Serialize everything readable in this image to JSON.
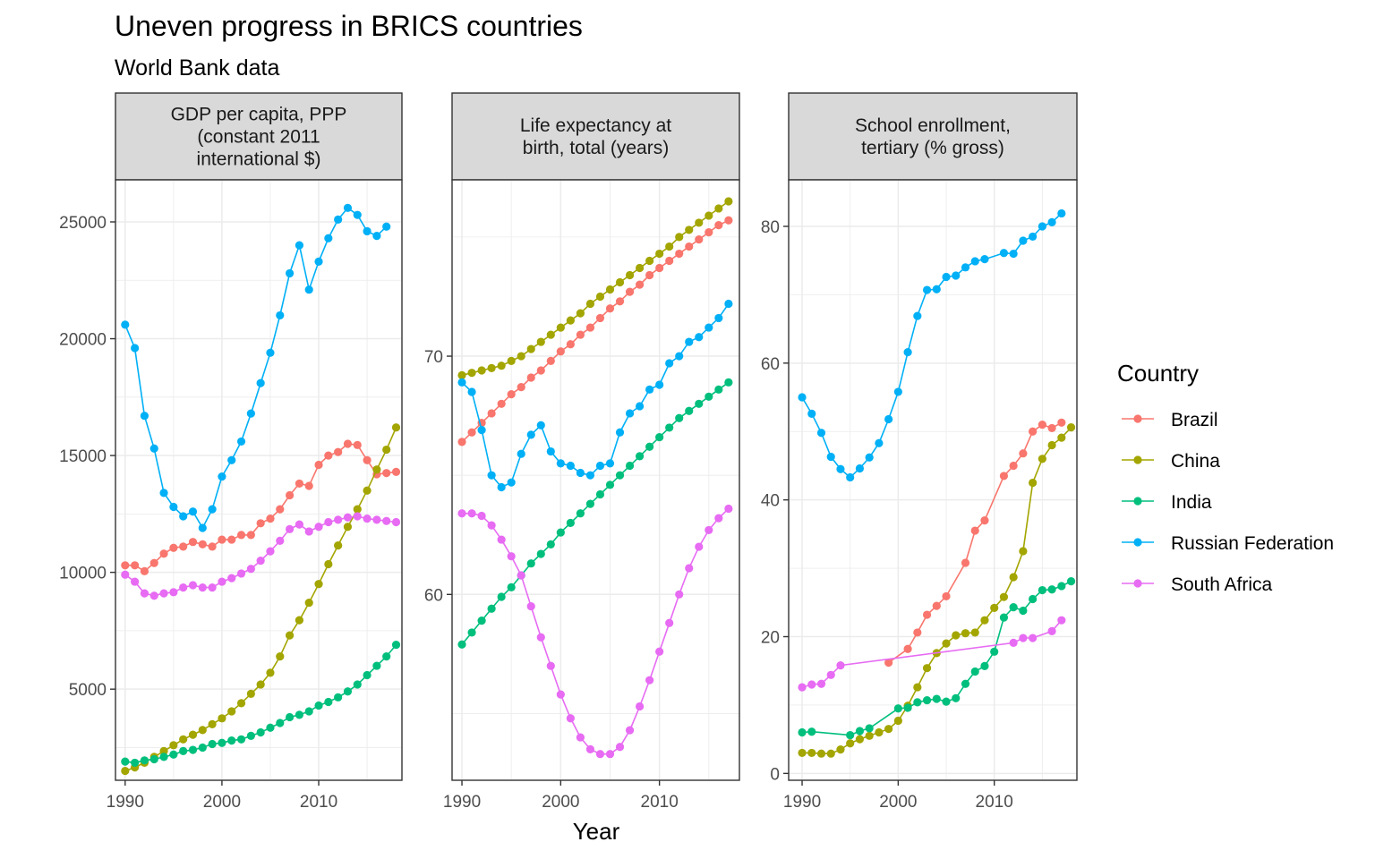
{
  "title": "Uneven progress in BRICS countries",
  "subtitle": "World Bank data",
  "xlabel": "Year",
  "legend": {
    "title": "Country",
    "entries": [
      "Brazil",
      "China",
      "India",
      "Russian Federation",
      "South Africa"
    ]
  },
  "colors": {
    "Brazil": "#F8766D",
    "China": "#A3A500",
    "India": "#00BF7D",
    "Russian Federation": "#00B0F6",
    "South Africa": "#E76BF3"
  },
  "chart_data": [
    {
      "type": "line",
      "strip_lines": [
        "GDP per capita, PPP",
        "(constant 2011",
        "international $)"
      ],
      "xlim": [
        1989,
        2018.6
      ],
      "ylim": [
        1100,
        26800
      ],
      "xticks": [
        1990,
        2000,
        2010
      ],
      "yticks": [
        5000,
        10000,
        15000,
        20000,
        25000
      ],
      "grid": true,
      "series": [
        {
          "name": "Brazil",
          "x": [
            1990,
            1991,
            1992,
            1993,
            1994,
            1995,
            1996,
            1997,
            1998,
            1999,
            2000,
            2001,
            2002,
            2003,
            2004,
            2005,
            2006,
            2007,
            2008,
            2009,
            2010,
            2011,
            2012,
            2013,
            2014,
            2015,
            2016,
            2017,
            2018
          ],
          "y": [
            10300,
            10300,
            10050,
            10400,
            10800,
            11050,
            11100,
            11300,
            11200,
            11100,
            11400,
            11400,
            11600,
            11600,
            12100,
            12300,
            12700,
            13300,
            13800,
            13700,
            14600,
            15000,
            15150,
            15500,
            15450,
            14800,
            14200,
            14250,
            14300
          ]
        },
        {
          "name": "China",
          "x": [
            1990,
            1991,
            1992,
            1993,
            1994,
            1995,
            1996,
            1997,
            1998,
            1999,
            2000,
            2001,
            2002,
            2003,
            2004,
            2005,
            2006,
            2007,
            2008,
            2009,
            2010,
            2011,
            2012,
            2013,
            2014,
            2015,
            2016,
            2017,
            2018
          ],
          "y": [
            1500,
            1650,
            1850,
            2100,
            2350,
            2600,
            2850,
            3050,
            3250,
            3500,
            3750,
            4050,
            4400,
            4800,
            5200,
            5700,
            6400,
            7300,
            7950,
            8700,
            9500,
            10350,
            11150,
            11950,
            12700,
            13500,
            14400,
            15250,
            16200
          ]
        },
        {
          "name": "India",
          "x": [
            1990,
            1991,
            1992,
            1993,
            1994,
            1995,
            1996,
            1997,
            1998,
            1999,
            2000,
            2001,
            2002,
            2003,
            2004,
            2005,
            2006,
            2007,
            2008,
            2009,
            2010,
            2011,
            2012,
            2013,
            2014,
            2015,
            2016,
            2017,
            2018
          ],
          "y": [
            1900,
            1850,
            1950,
            2000,
            2100,
            2200,
            2350,
            2400,
            2500,
            2650,
            2700,
            2800,
            2850,
            3000,
            3150,
            3350,
            3550,
            3800,
            3900,
            4050,
            4300,
            4450,
            4650,
            4900,
            5200,
            5600,
            6000,
            6400,
            6900
          ]
        },
        {
          "name": "Russian Federation",
          "x": [
            1990,
            1991,
            1992,
            1993,
            1994,
            1995,
            1996,
            1997,
            1998,
            1999,
            2000,
            2001,
            2002,
            2003,
            2004,
            2005,
            2006,
            2007,
            2008,
            2009,
            2010,
            2011,
            2012,
            2013,
            2014,
            2015,
            2016,
            2017
          ],
          "y": [
            20600,
            19600,
            16700,
            15300,
            13400,
            12800,
            12400,
            12600,
            11900,
            12700,
            14100,
            14800,
            15600,
            16800,
            18100,
            19400,
            21000,
            22800,
            24000,
            22100,
            23300,
            24300,
            25100,
            25600,
            25300,
            24600,
            24400,
            24800
          ]
        },
        {
          "name": "South Africa",
          "x": [
            1990,
            1991,
            1992,
            1993,
            1994,
            1995,
            1996,
            1997,
            1998,
            1999,
            2000,
            2001,
            2002,
            2003,
            2004,
            2005,
            2006,
            2007,
            2008,
            2009,
            2010,
            2011,
            2012,
            2013,
            2014,
            2015,
            2016,
            2017,
            2018
          ],
          "y": [
            9900,
            9600,
            9100,
            9000,
            9100,
            9150,
            9350,
            9450,
            9350,
            9350,
            9600,
            9750,
            9950,
            10150,
            10500,
            10900,
            11350,
            11850,
            12050,
            11750,
            11950,
            12150,
            12250,
            12350,
            12400,
            12300,
            12250,
            12200,
            12150
          ]
        }
      ]
    },
    {
      "type": "line",
      "strip_lines": [
        "Life expectancy at",
        "birth, total (years)"
      ],
      "xlim": [
        1989,
        2018.1
      ],
      "ylim": [
        52.2,
        77.4
      ],
      "xticks": [
        1990,
        2000,
        2010
      ],
      "yticks": [
        60,
        70
      ],
      "grid": true,
      "series": [
        {
          "name": "Brazil",
          "x": [
            1990,
            1991,
            1992,
            1993,
            1994,
            1995,
            1996,
            1997,
            1998,
            1999,
            2000,
            2001,
            2002,
            2003,
            2004,
            2005,
            2006,
            2007,
            2008,
            2009,
            2010,
            2011,
            2012,
            2013,
            2014,
            2015,
            2016,
            2017
          ],
          "y": [
            66.4,
            66.8,
            67.2,
            67.6,
            68.0,
            68.4,
            68.7,
            69.1,
            69.4,
            69.8,
            70.2,
            70.5,
            70.9,
            71.2,
            71.6,
            72.0,
            72.3,
            72.7,
            73.0,
            73.4,
            73.7,
            74.0,
            74.3,
            74.6,
            74.9,
            75.2,
            75.5,
            75.7
          ]
        },
        {
          "name": "China",
          "x": [
            1990,
            1991,
            1992,
            1993,
            1994,
            1995,
            1996,
            1997,
            1998,
            1999,
            2000,
            2001,
            2002,
            2003,
            2004,
            2005,
            2006,
            2007,
            2008,
            2009,
            2010,
            2011,
            2012,
            2013,
            2014,
            2015,
            2016,
            2017
          ],
          "y": [
            69.2,
            69.3,
            69.4,
            69.5,
            69.6,
            69.8,
            70.0,
            70.3,
            70.6,
            70.9,
            71.2,
            71.5,
            71.8,
            72.2,
            72.5,
            72.8,
            73.1,
            73.4,
            73.7,
            74.0,
            74.3,
            74.6,
            75.0,
            75.3,
            75.6,
            75.9,
            76.2,
            76.5
          ]
        },
        {
          "name": "India",
          "x": [
            1990,
            1991,
            1992,
            1993,
            1994,
            1995,
            1996,
            1997,
            1998,
            1999,
            2000,
            2001,
            2002,
            2003,
            2004,
            2005,
            2006,
            2007,
            2008,
            2009,
            2010,
            2011,
            2012,
            2013,
            2014,
            2015,
            2016,
            2017
          ],
          "y": [
            57.9,
            58.4,
            58.9,
            59.4,
            59.9,
            60.3,
            60.8,
            61.3,
            61.7,
            62.1,
            62.6,
            63.0,
            63.4,
            63.8,
            64.2,
            64.6,
            65.0,
            65.4,
            65.8,
            66.2,
            66.6,
            67.0,
            67.4,
            67.7,
            68.0,
            68.3,
            68.6,
            68.9
          ]
        },
        {
          "name": "Russian Federation",
          "x": [
            1990,
            1991,
            1992,
            1993,
            1994,
            1995,
            1996,
            1997,
            1998,
            1999,
            2000,
            2001,
            2002,
            2003,
            2004,
            2005,
            2006,
            2007,
            2008,
            2009,
            2010,
            2011,
            2012,
            2013,
            2014,
            2015,
            2016,
            2017
          ],
          "y": [
            68.9,
            68.5,
            66.9,
            65.0,
            64.5,
            64.7,
            65.9,
            66.7,
            67.1,
            66.0,
            65.5,
            65.4,
            65.1,
            65.0,
            65.4,
            65.5,
            66.8,
            67.6,
            67.9,
            68.6,
            68.8,
            69.7,
            70.0,
            70.6,
            70.8,
            71.2,
            71.6,
            72.2
          ]
        },
        {
          "name": "South Africa",
          "x": [
            1990,
            1991,
            1992,
            1993,
            1994,
            1995,
            1996,
            1997,
            1998,
            1999,
            2000,
            2001,
            2002,
            2003,
            2004,
            2005,
            2006,
            2007,
            2008,
            2009,
            2010,
            2011,
            2012,
            2013,
            2014,
            2015,
            2016,
            2017
          ],
          "y": [
            63.4,
            63.4,
            63.3,
            62.9,
            62.3,
            61.6,
            60.8,
            59.5,
            58.2,
            57.0,
            55.8,
            54.8,
            54.0,
            53.5,
            53.3,
            53.3,
            53.6,
            54.3,
            55.3,
            56.4,
            57.6,
            58.8,
            60.0,
            61.1,
            62.0,
            62.7,
            63.2,
            63.6
          ]
        }
      ]
    },
    {
      "type": "line",
      "strip_lines": [
        "School enrollment,",
        "tertiary (% gross)"
      ],
      "xlim": [
        1988.6,
        2018.6
      ],
      "ylim": [
        -1,
        86.8
      ],
      "xticks": [
        1990,
        2000,
        2010
      ],
      "yticks": [
        0,
        20,
        40,
        60,
        80
      ],
      "grid": true,
      "series": [
        {
          "name": "Brazil",
          "x": [
            1999,
            2001,
            2002,
            2003,
            2004,
            2005,
            2007,
            2008,
            2009,
            2011,
            2012,
            2013,
            2014,
            2015,
            2016,
            2017
          ],
          "y": [
            16.2,
            18.2,
            20.6,
            23.2,
            24.5,
            25.9,
            30.8,
            35.5,
            37.0,
            43.5,
            45.0,
            46.8,
            50.0,
            51.0,
            50.5,
            51.3
          ]
        },
        {
          "name": "China",
          "x": [
            1990,
            1991,
            1992,
            1993,
            1994,
            1995,
            1996,
            1997,
            1998,
            1999,
            2000,
            2001,
            2002,
            2003,
            2004,
            2005,
            2006,
            2007,
            2008,
            2009,
            2010,
            2011,
            2012,
            2013,
            2014,
            2015,
            2016,
            2017,
            2018
          ],
          "y": [
            3.0,
            3.0,
            2.9,
            2.9,
            3.5,
            4.4,
            5.0,
            5.5,
            6.0,
            6.5,
            7.7,
            9.9,
            12.6,
            15.4,
            17.6,
            19.0,
            20.2,
            20.5,
            20.6,
            22.4,
            24.2,
            25.8,
            28.7,
            32.5,
            42.5,
            46.0,
            48.0,
            49.1,
            50.6
          ]
        },
        {
          "name": "India",
          "x": [
            1990,
            1991,
            1995,
            1996,
            1997,
            2000,
            2001,
            2002,
            2003,
            2004,
            2005,
            2006,
            2007,
            2008,
            2009,
            2010,
            2011,
            2012,
            2013,
            2014,
            2015,
            2016,
            2017,
            2018
          ],
          "y": [
            6.0,
            6.1,
            5.6,
            6.2,
            6.6,
            9.5,
            9.6,
            10.4,
            10.7,
            10.9,
            10.5,
            11.0,
            13.1,
            14.9,
            15.7,
            17.8,
            22.8,
            24.3,
            23.8,
            25.5,
            26.8,
            26.9,
            27.4,
            28.1
          ]
        },
        {
          "name": "Russian Federation",
          "x": [
            1990,
            1991,
            1992,
            1993,
            1994,
            1995,
            1996,
            1997,
            1998,
            1999,
            2000,
            2001,
            2002,
            2003,
            2004,
            2005,
            2006,
            2007,
            2008,
            2009,
            2011,
            2012,
            2013,
            2014,
            2015,
            2016,
            2017
          ],
          "y": [
            55.0,
            52.6,
            49.8,
            46.3,
            44.5,
            43.3,
            44.6,
            46.2,
            48.3,
            51.8,
            55.8,
            61.6,
            66.9,
            70.7,
            70.8,
            72.6,
            72.8,
            74.0,
            74.9,
            75.2,
            76.1,
            76.0,
            77.9,
            78.5,
            80.0,
            80.6,
            81.9
          ]
        },
        {
          "name": "South Africa",
          "x": [
            1990,
            1991,
            1992,
            1993,
            1994,
            2012,
            2013,
            2014,
            2016,
            2017
          ],
          "y": [
            12.6,
            13.0,
            13.1,
            14.4,
            15.8,
            19.1,
            19.8,
            19.8,
            20.8,
            22.4
          ]
        }
      ]
    }
  ]
}
